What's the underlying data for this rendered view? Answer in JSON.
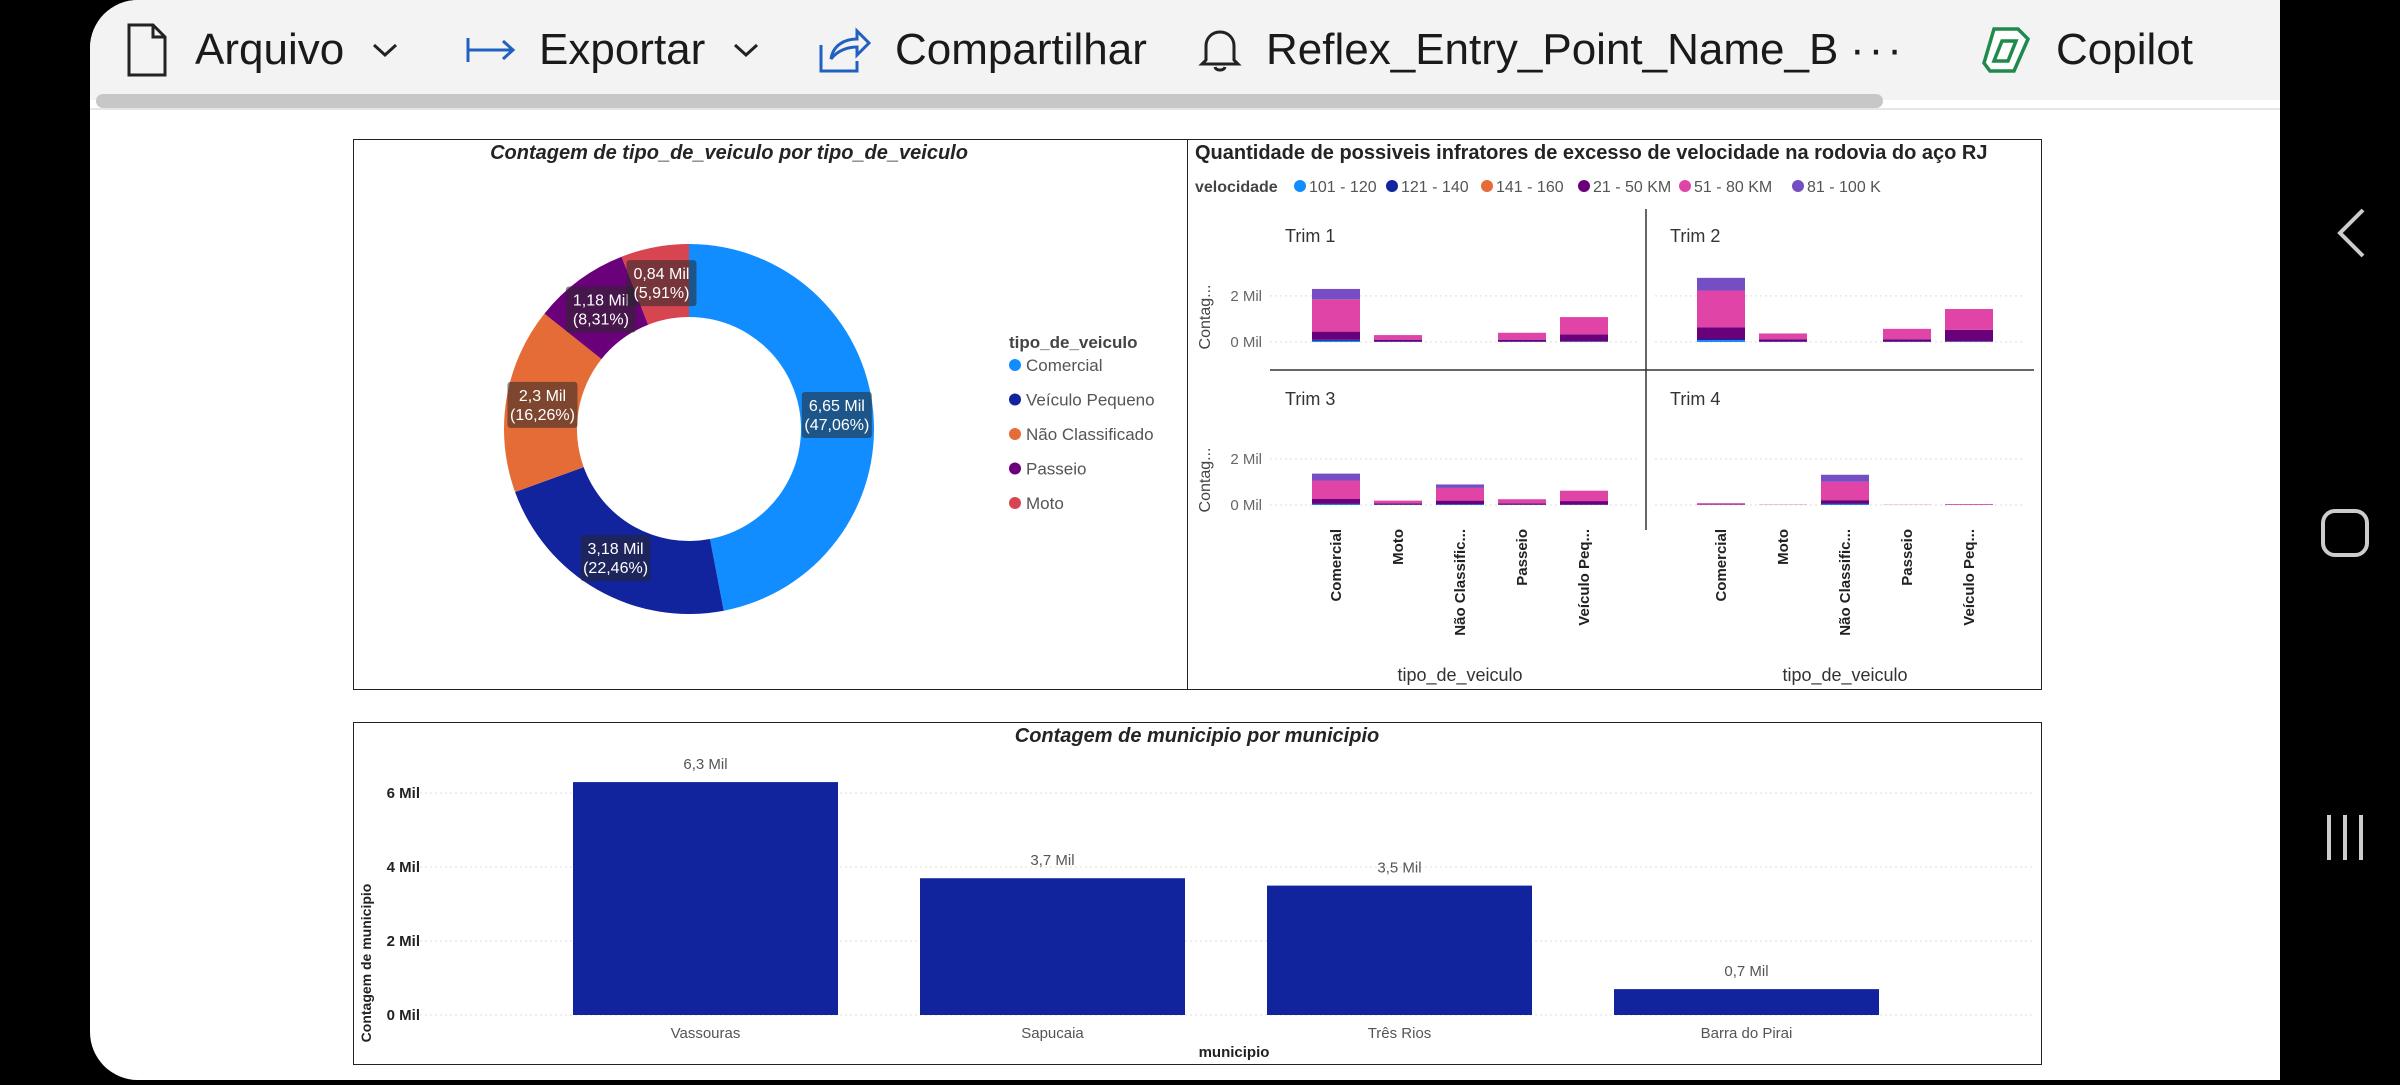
{
  "toolbar": {
    "file_label": "Arquivo",
    "export_label": "Exportar",
    "share_label": "Compartilhar",
    "subscribe_label": "Reflex_Entry_Point_Name_B",
    "more_label": "···",
    "copilot_label": "Copilot"
  },
  "icons": {
    "file": "file-icon",
    "export": "export-arrow-icon",
    "share": "share-icon",
    "bell": "bell-icon",
    "copilot": "copilot-icon",
    "chevron": "chevron-down-icon",
    "back": "back-chevron-icon",
    "home": "home-square-icon",
    "recents": "recents-icon"
  },
  "colors": {
    "comercial": "#118DFF",
    "veiculo_pequeno": "#12239E",
    "nao_classificado": "#E66C37",
    "passeio": "#6B007B",
    "moto": "#D64550",
    "v101_120": "#118DFF",
    "v121_140": "#12239E",
    "v141_160": "#E66C37",
    "v21_50": "#6B007B",
    "v51_80": "#E044A7",
    "v81_100": "#744EC2",
    "bar": "#12239E"
  },
  "chart_data": [
    {
      "type": "pie",
      "title": "Contagem de tipo_de_veiculo por tipo_de_veiculo",
      "legend_title": "tipo_de_veiculo",
      "legend_position": "right",
      "slices": [
        {
          "name": "Comercial",
          "value": 6.65,
          "label": "6,65 Mil",
          "pct": "(47,06%)"
        },
        {
          "name": "Veículo Pequeno",
          "value": 3.18,
          "label": "3,18 Mil",
          "pct": "(22,46%)"
        },
        {
          "name": "Não Classificado",
          "value": 2.3,
          "label": "2,3 Mil",
          "pct": "(16,26%)"
        },
        {
          "name": "Passeio",
          "value": 1.18,
          "label": "1,18 Mil",
          "pct": "(8,31%)"
        },
        {
          "name": "Moto",
          "value": 0.84,
          "label": "0,84 Mil",
          "pct": "(5,91%)"
        }
      ]
    },
    {
      "type": "bar",
      "stacked": true,
      "title": "Quantidade de possiveis infratores de excesso de velocidade na rodovia do aço RJ",
      "legend_title": "velocidade",
      "legend_position": "top",
      "series_names": [
        "101 - 120",
        "121 - 140",
        "141 - 160",
        "21 - 50 KM",
        "51 - 80 KM",
        "81 - 100 K"
      ],
      "categories": [
        "Comercial",
        "Moto",
        "Não Classific...",
        "Passeio",
        "Veículo Peq..."
      ],
      "xlabel": "tipo_de_veiculo",
      "ylabel": "Contag...",
      "ylim": [
        0,
        2.6
      ],
      "ytick_labels": [
        "0 Mil",
        "2 Mil"
      ],
      "facets": [
        {
          "name": "Trim 1",
          "stacks": [
            [
              0.05,
              0.05,
              0,
              0.35,
              1.4,
              0.45
            ],
            [
              0.01,
              0.01,
              0,
              0.08,
              0.2,
              0
            ],
            [
              0,
              0,
              0,
              0,
              0,
              0
            ],
            [
              0.01,
              0.01,
              0,
              0.08,
              0.3,
              0
            ],
            [
              0.01,
              0.02,
              0,
              0.3,
              0.75,
              0
            ]
          ]
        },
        {
          "name": "Trim 2",
          "stacks": [
            [
              0.08,
              0.05,
              0,
              0.5,
              1.6,
              0.55
            ],
            [
              0.01,
              0.01,
              0,
              0.1,
              0.25,
              0
            ],
            [
              0,
              0,
              0,
              0,
              0,
              0
            ],
            [
              0.01,
              0.01,
              0,
              0.1,
              0.45,
              0
            ],
            [
              0.01,
              0.02,
              0,
              0.5,
              0.9,
              0
            ]
          ]
        },
        {
          "name": "Trim 3",
          "stacks": [
            [
              0.03,
              0.03,
              0,
              0.2,
              0.8,
              0.3
            ],
            [
              0.01,
              0.01,
              0,
              0.05,
              0.12,
              0
            ],
            [
              0.02,
              0.02,
              0,
              0.15,
              0.55,
              0.15
            ],
            [
              0.01,
              0.01,
              0,
              0.05,
              0.18,
              0
            ],
            [
              0.01,
              0.01,
              0,
              0.15,
              0.45,
              0
            ]
          ]
        },
        {
          "name": "Trim 4",
          "stacks": [
            [
              0.0,
              0.01,
              0,
              0.02,
              0.05,
              0
            ],
            [
              0,
              0,
              0,
              0.005,
              0.01,
              0
            ],
            [
              0.03,
              0.03,
              0,
              0.15,
              0.8,
              0.3
            ],
            [
              0,
              0,
              0,
              0,
              0.01,
              0
            ],
            [
              0,
              0,
              0,
              0.01,
              0.03,
              0
            ]
          ]
        }
      ]
    },
    {
      "type": "bar",
      "title": "Contagem de municipio por municipio",
      "xlabel": "municipio",
      "ylabel": "Contagem de municipio",
      "categories": [
        "Vassouras",
        "Sapucaia",
        "Três Rios",
        "Barra do Pirai"
      ],
      "values": [
        6.3,
        3.7,
        3.5,
        0.7
      ],
      "data_labels": [
        "6,3 Mil",
        "3,7 Mil",
        "3,5 Mil",
        "0,7 Mil"
      ],
      "ytick_labels": [
        "0 Mil",
        "2 Mil",
        "4 Mil",
        "6 Mil"
      ],
      "ylim": [
        0,
        6.6
      ],
      "grid": true
    }
  ]
}
